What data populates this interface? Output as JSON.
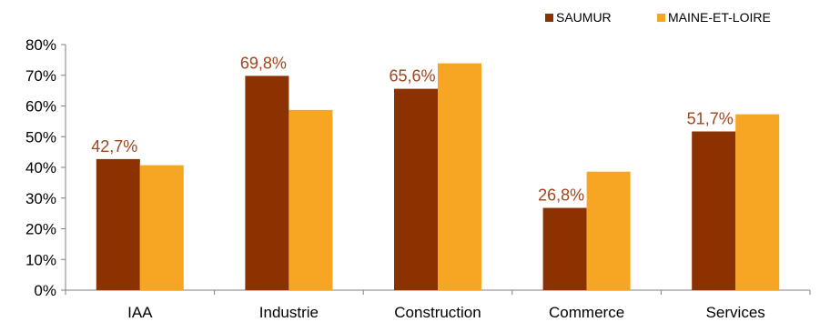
{
  "chart_data": {
    "type": "bar",
    "categories": [
      "IAA",
      "Industrie",
      "Construction",
      "Commerce",
      "Services"
    ],
    "series": [
      {
        "name": "SAUMUR",
        "values": [
          42.7,
          69.8,
          65.6,
          26.8,
          51.7
        ],
        "data_labels": [
          "42,7%",
          "69,8%",
          "65,6%",
          "26,8%",
          "51,7%"
        ]
      },
      {
        "name": "MAINE-ET-LOIRE",
        "values": [
          40.7,
          58.7,
          73.9,
          38.6,
          57.3
        ]
      }
    ],
    "y_ticks": [
      "0%",
      "10%",
      "20%",
      "30%",
      "40%",
      "50%",
      "60%",
      "70%",
      "80%"
    ],
    "ylim": [
      0,
      80
    ],
    "grid": false,
    "legend_position": "top-right",
    "colors": {
      "SAUMUR": "#8B3200",
      "MAINE-ET-LOIRE": "#F6A623",
      "data_label": "#A0461C"
    }
  }
}
